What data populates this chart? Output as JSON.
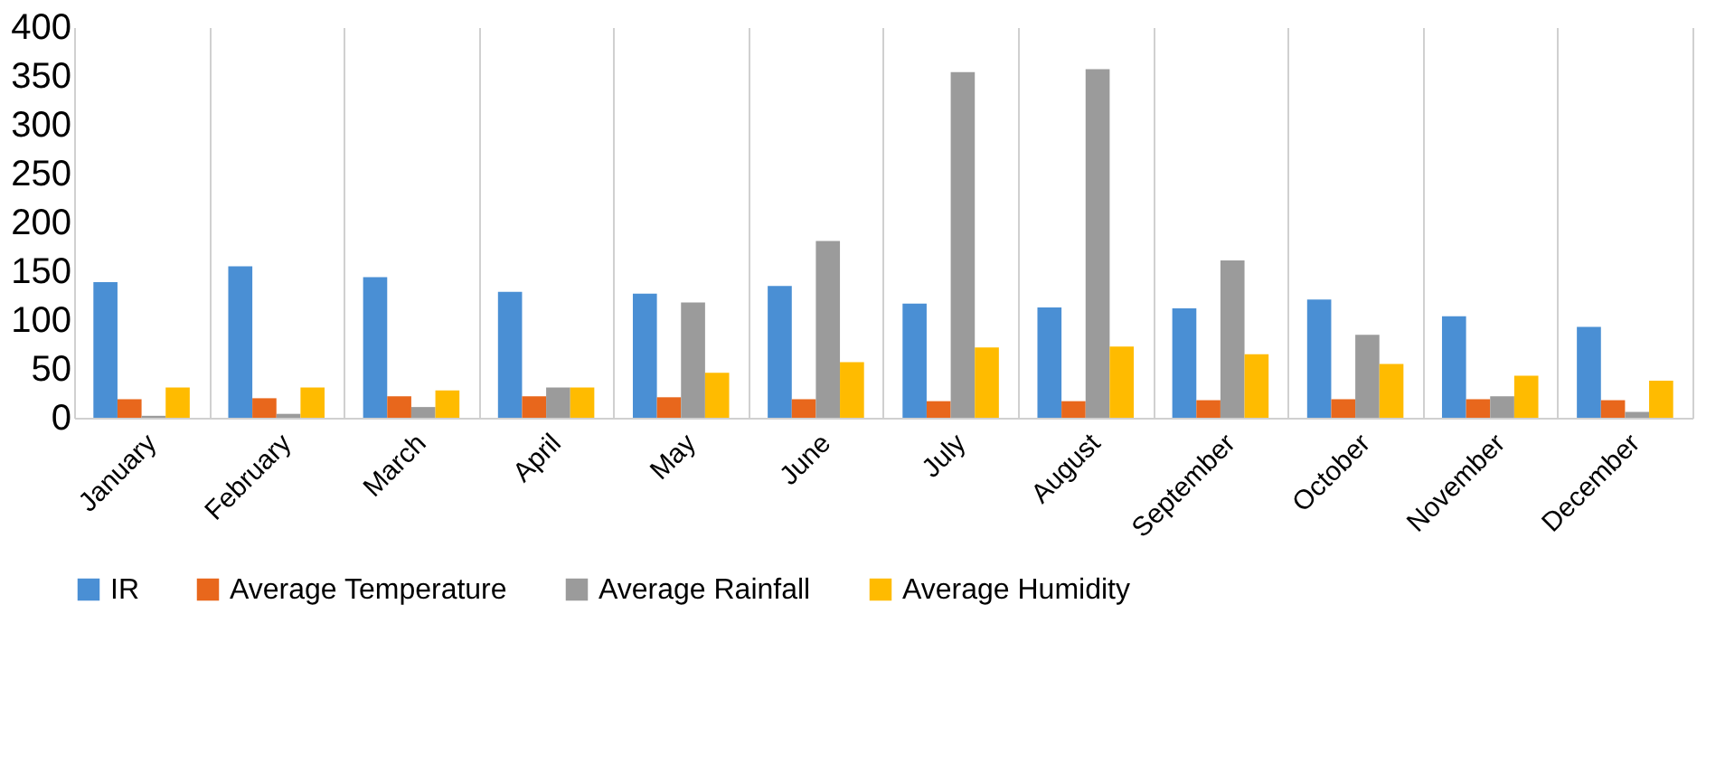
{
  "chart_data": {
    "type": "bar",
    "categories": [
      "January",
      "February",
      "March",
      "April",
      "May",
      "June",
      "July",
      "August",
      "September",
      "October",
      "November",
      "December"
    ],
    "series": [
      {
        "name": "IR",
        "color": "#4a8fd4",
        "values": [
          139,
          155,
          144,
          129,
          127,
          135,
          117,
          113,
          112,
          121,
          104,
          93
        ]
      },
      {
        "name": "Average Temperature",
        "color": "#e8671c",
        "values": [
          19,
          20,
          22,
          22,
          21,
          19,
          17,
          17,
          18,
          19,
          19,
          18
        ]
      },
      {
        "name": "Average Rainfall",
        "color": "#9b9b9b",
        "values": [
          2,
          4,
          11,
          31,
          118,
          181,
          354,
          357,
          161,
          85,
          22,
          6
        ]
      },
      {
        "name": "Average Humidity",
        "color": "#ffbb00",
        "values": [
          31,
          31,
          28,
          31,
          46,
          57,
          72,
          73,
          65,
          55,
          43,
          38
        ]
      }
    ],
    "ylim": [
      0,
      400
    ],
    "yticks": [
      0,
      50,
      100,
      150,
      200,
      250,
      300,
      350,
      400
    ],
    "grid": "x",
    "legend": "bottom"
  }
}
